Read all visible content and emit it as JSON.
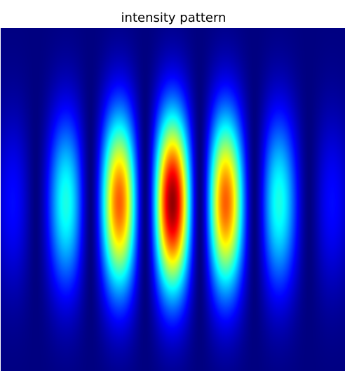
{
  "title": "intensity pattern",
  "image": {
    "colormap": "jet",
    "description_colors": {
      "background": "#000080",
      "peak": "#800000"
    }
  }
}
